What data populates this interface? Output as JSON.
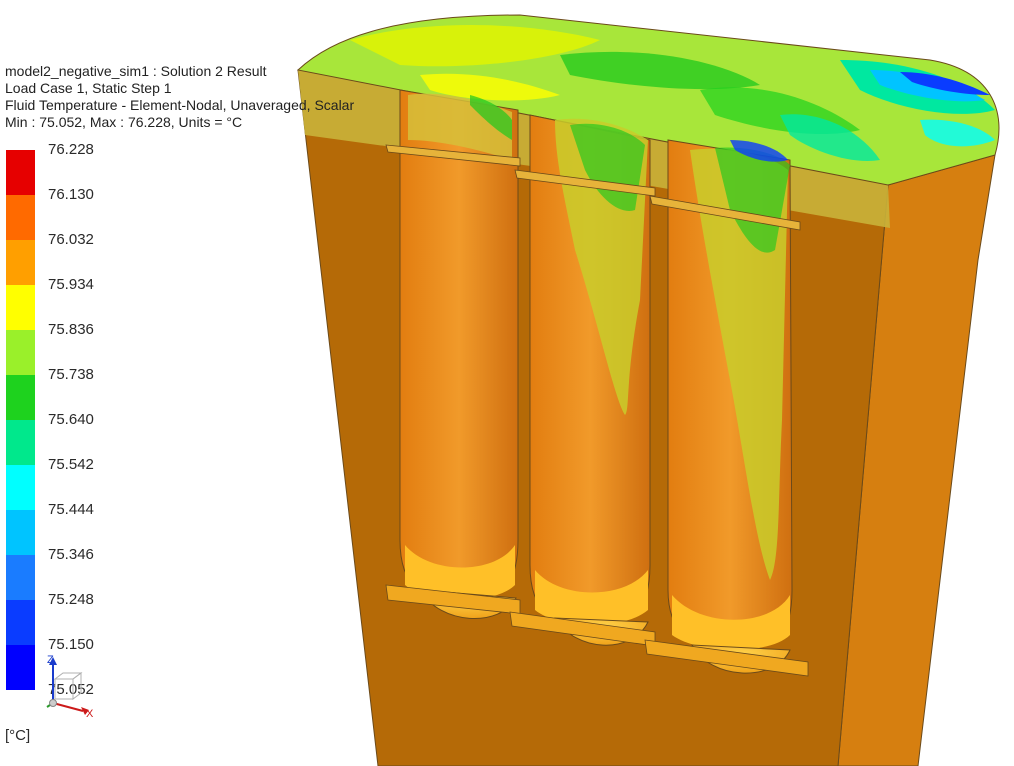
{
  "header": {
    "line1": "model2_negative_sim1 : Solution 2 Result",
    "line2": "Load Case 1, Static Step 1",
    "line3": "Fluid Temperature - Element-Nodal, Unaveraged, Scalar",
    "line4": "Min : 75.052, Max : 76.228, Units = °C"
  },
  "legend": {
    "values": [
      "76.228",
      "76.130",
      "76.032",
      "75.934",
      "75.836",
      "75.738",
      "75.640",
      "75.542",
      "75.444",
      "75.346",
      "75.248",
      "75.150",
      "75.052"
    ],
    "colors": [
      "#e60000",
      "#ff6a00",
      "#ff9f00",
      "#ffff00",
      "#9af02a",
      "#1ed21e",
      "#00e88c",
      "#00ffff",
      "#00c4ff",
      "#1a7cff",
      "#0a3cff",
      "#0000ff"
    ],
    "unit": "[°C]"
  },
  "triad": {
    "z_label": "Z",
    "x_label": "X"
  }
}
